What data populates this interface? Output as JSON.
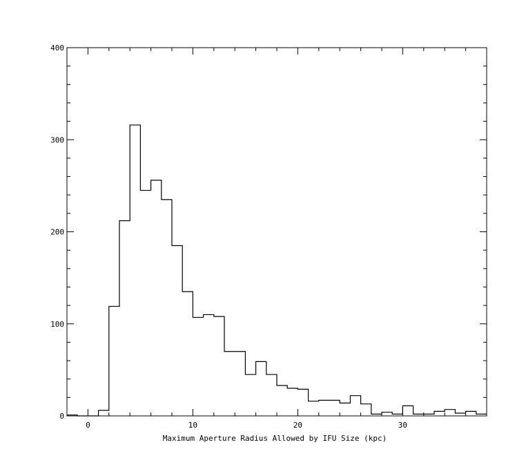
{
  "chart_data": {
    "type": "bar",
    "style": "step-histogram",
    "title": "",
    "xlabel": "Maximum Aperture Radius Allowed by IFU Size (kpc)",
    "ylabel": "",
    "xlim": [
      -2,
      38
    ],
    "ylim": [
      0,
      400
    ],
    "xticks": [
      0,
      10,
      20,
      30
    ],
    "yticks": [
      0,
      100,
      200,
      300,
      400
    ],
    "grid": false,
    "line_color": "#000000",
    "bin_width": 1,
    "bin_edges": [
      -2,
      -1,
      0,
      1,
      2,
      3,
      4,
      5,
      6,
      7,
      8,
      9,
      10,
      11,
      12,
      13,
      14,
      15,
      16,
      17,
      18,
      19,
      20,
      21,
      22,
      23,
      24,
      25,
      26,
      27,
      28,
      29,
      30,
      31,
      32,
      33,
      34,
      35,
      36,
      37,
      38
    ],
    "values": [
      1,
      0,
      0,
      6,
      119,
      212,
      316,
      245,
      256,
      235,
      185,
      135,
      107,
      110,
      108,
      70,
      70,
      45,
      59,
      45,
      33,
      30,
      29,
      16,
      17,
      17,
      14,
      22,
      13,
      2,
      4,
      2,
      11,
      2,
      2,
      5,
      7,
      3,
      5,
      2
    ]
  }
}
